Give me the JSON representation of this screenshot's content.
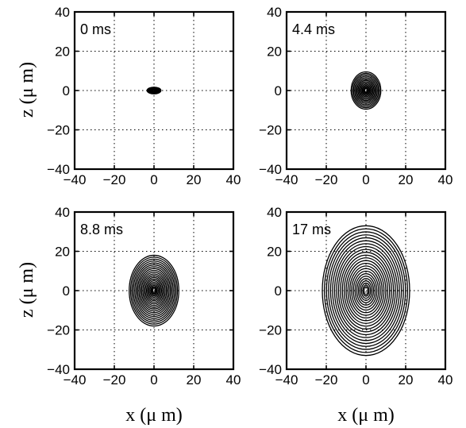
{
  "chart_data": [
    {
      "type": "contour",
      "annotation": "0 ms",
      "xlabel": "",
      "ylabel": "z (μ m)",
      "xlim": [
        -40,
        40
      ],
      "ylim": [
        -40,
        40
      ],
      "xticks": [
        "−40",
        "−20",
        "0",
        "20",
        "40"
      ],
      "yticks": [
        "−40",
        "−20",
        "0",
        "20",
        "40"
      ],
      "grid": true,
      "center": [
        0,
        0
      ],
      "contour_levels": 9,
      "outer_semi_axes": {
        "x": 3.5,
        "z": 1.7
      },
      "inner_semi_axes": {
        "x": 0.5,
        "z": 0.3
      }
    },
    {
      "type": "contour",
      "annotation": "4.4 ms",
      "xlabel": "",
      "ylabel": "",
      "xlim": [
        -40,
        40
      ],
      "ylim": [
        -40,
        40
      ],
      "xticks": [
        "−40",
        "−20",
        "0",
        "20",
        "40"
      ],
      "yticks": [
        "−40",
        "−20",
        "0",
        "20",
        "40"
      ],
      "grid": true,
      "center": [
        0,
        0
      ],
      "contour_levels": 14,
      "outer_semi_axes": {
        "x": 7.5,
        "z": 9.5
      },
      "inner_semi_axes": {
        "x": 0.6,
        "z": 1
      }
    },
    {
      "type": "contour",
      "annotation": "8.8 ms",
      "xlabel": "x (μ m)",
      "ylabel": "z (μ m)",
      "xlim": [
        -40,
        40
      ],
      "ylim": [
        -40,
        40
      ],
      "xticks": [
        "−40",
        "−20",
        "0",
        "20",
        "40"
      ],
      "yticks": [
        "−40",
        "−20",
        "0",
        "20",
        "40"
      ],
      "grid": true,
      "center": [
        0,
        0
      ],
      "contour_levels": 20,
      "outer_semi_axes": {
        "x": 12.5,
        "z": 18
      },
      "inner_semi_axes": {
        "x": 0.6,
        "z": 1.5
      }
    },
    {
      "type": "contour",
      "annotation": "17 ms",
      "xlabel": "x (μ m)",
      "ylabel": "",
      "xlim": [
        -40,
        40
      ],
      "ylim": [
        -40,
        40
      ],
      "xticks": [
        "−40",
        "−20",
        "0",
        "20",
        "40"
      ],
      "yticks": [
        "−40",
        "−20",
        "0",
        "20",
        "40"
      ],
      "grid": true,
      "center": [
        0,
        0
      ],
      "contour_levels": 24,
      "outer_semi_axes": {
        "x": 22,
        "z": 33
      },
      "inner_semi_axes": {
        "x": 1,
        "z": 2
      }
    }
  ]
}
